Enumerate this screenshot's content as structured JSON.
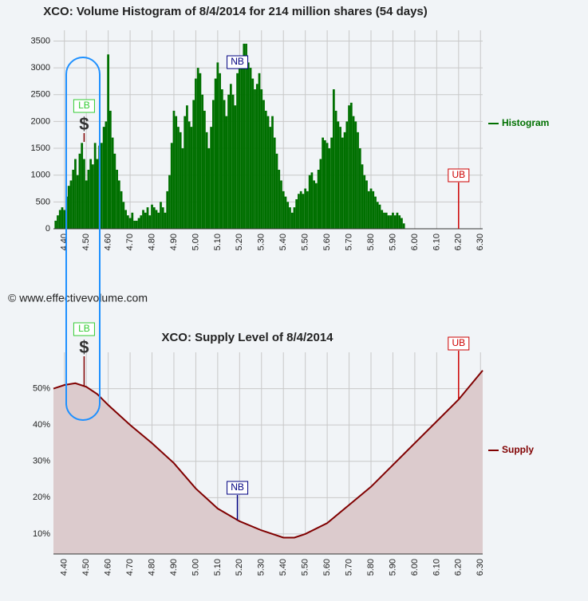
{
  "copyright": "© www.effectivevolume.com",
  "chart_data": [
    {
      "type": "bar",
      "title": "XCO: Volume Histogram of 8/4/2014 for 214 million shares (54 days)",
      "color": "#007000",
      "legend": "Histogram",
      "legend_position": "right",
      "grid": true,
      "x": [
        4.36,
        4.37,
        4.38,
        4.39,
        4.4,
        4.41,
        4.42,
        4.43,
        4.44,
        4.45,
        4.46,
        4.47,
        4.48,
        4.49,
        4.5,
        4.51,
        4.52,
        4.53,
        4.54,
        4.55,
        4.56,
        4.57,
        4.58,
        4.59,
        4.6,
        4.61,
        4.62,
        4.63,
        4.64,
        4.65,
        4.66,
        4.67,
        4.68,
        4.69,
        4.7,
        4.71,
        4.72,
        4.73,
        4.74,
        4.75,
        4.76,
        4.77,
        4.78,
        4.79,
        4.8,
        4.81,
        4.82,
        4.83,
        4.84,
        4.85,
        4.86,
        4.87,
        4.88,
        4.89,
        4.9,
        4.91,
        4.92,
        4.93,
        4.94,
        4.95,
        4.96,
        4.97,
        4.98,
        4.99,
        5.0,
        5.01,
        5.02,
        5.03,
        5.04,
        5.05,
        5.06,
        5.07,
        5.08,
        5.09,
        5.1,
        5.11,
        5.12,
        5.13,
        5.14,
        5.15,
        5.16,
        5.17,
        5.18,
        5.19,
        5.2,
        5.21,
        5.22,
        5.23,
        5.24,
        5.25,
        5.26,
        5.27,
        5.28,
        5.29,
        5.3,
        5.31,
        5.32,
        5.33,
        5.34,
        5.35,
        5.36,
        5.37,
        5.38,
        5.39,
        5.4,
        5.41,
        5.42,
        5.43,
        5.44,
        5.45,
        5.46,
        5.47,
        5.48,
        5.49,
        5.5,
        5.51,
        5.52,
        5.53,
        5.54,
        5.55,
        5.56,
        5.57,
        5.58,
        5.59,
        5.6,
        5.61,
        5.62,
        5.63,
        5.64,
        5.65,
        5.66,
        5.67,
        5.68,
        5.69,
        5.7,
        5.71,
        5.72,
        5.73,
        5.74,
        5.75,
        5.76,
        5.77,
        5.78,
        5.79,
        5.8,
        5.81,
        5.82,
        5.83,
        5.84,
        5.85,
        5.86,
        5.87,
        5.88,
        5.89,
        5.9,
        5.91,
        5.92,
        5.93,
        5.94,
        5.95
      ],
      "values": [
        150,
        250,
        350,
        400,
        350,
        600,
        800,
        900,
        1100,
        1300,
        1000,
        1400,
        1600,
        1300,
        900,
        1100,
        1300,
        1200,
        1600,
        1300,
        1550,
        1600,
        1900,
        2000,
        3250,
        2200,
        1700,
        1400,
        1100,
        900,
        700,
        500,
        350,
        250,
        200,
        300,
        150,
        150,
        200,
        250,
        350,
        300,
        400,
        250,
        450,
        400,
        350,
        300,
        500,
        400,
        300,
        700,
        1000,
        1600,
        2200,
        2100,
        1900,
        1800,
        1500,
        2100,
        2300,
        2000,
        1900,
        2400,
        2800,
        3000,
        2900,
        2500,
        2200,
        1800,
        1500,
        1900,
        2400,
        2800,
        3100,
        2900,
        2600,
        2400,
        2100,
        2500,
        2700,
        2500,
        2300,
        2900,
        3200,
        3000,
        3450,
        3450,
        3100,
        3000,
        2800,
        2600,
        2700,
        2900,
        2600,
        2400,
        2200,
        2100,
        1900,
        2100,
        1700,
        1400,
        1100,
        900,
        700,
        600,
        500,
        400,
        300,
        400,
        550,
        650,
        700,
        650,
        750,
        700,
        1000,
        1050,
        900,
        850,
        1100,
        1300,
        1700,
        1650,
        1600,
        1500,
        1700,
        2600,
        2200,
        2000,
        1900,
        1700,
        1800,
        2000,
        2300,
        2350,
        2100,
        2000,
        1800,
        1500,
        1200,
        1000,
        900,
        700,
        750,
        700,
        600,
        500,
        450,
        350,
        300,
        300,
        250,
        250,
        300,
        250,
        300,
        250,
        200,
        100
      ],
      "xlim": [
        4.35,
        6.31
      ],
      "xticks": [
        {
          "value": 4.4,
          "label": "4.40"
        },
        {
          "value": 4.5,
          "label": "4.50"
        },
        {
          "value": 4.6,
          "label": "4.60"
        },
        {
          "value": 4.7,
          "label": "4.70"
        },
        {
          "value": 4.8,
          "label": "4.80"
        },
        {
          "value": 4.9,
          "label": "4.90"
        },
        {
          "value": 5,
          "label": "5.00"
        },
        {
          "value": 5.1,
          "label": "5.10"
        },
        {
          "value": 5.2,
          "label": "5.20"
        },
        {
          "value": 5.3,
          "label": "5.30"
        },
        {
          "value": 5.4,
          "label": "5.40"
        },
        {
          "value": 5.5,
          "label": "5.50"
        },
        {
          "value": 5.6,
          "label": "5.60"
        },
        {
          "value": 5.7,
          "label": "5.70"
        },
        {
          "value": 5.8,
          "label": "5.80"
        },
        {
          "value": 5.9,
          "label": "5.90"
        },
        {
          "value": 6,
          "label": "6.00"
        },
        {
          "value": 6.1,
          "label": "6.10"
        },
        {
          "value": 6.2,
          "label": "6.20"
        },
        {
          "value": 6.3,
          "label": "6.30"
        }
      ],
      "ylim": [
        0,
        3700
      ],
      "yticks": [
        0,
        500,
        1000,
        1500,
        2000,
        2500,
        3000,
        3500
      ],
      "annotations": [
        {
          "label": "LB",
          "x": 4.49,
          "symbol": "$",
          "color": "#33cc33"
        },
        {
          "label": "NB",
          "x": 5.19,
          "color": "#000080"
        },
        {
          "label": "UB",
          "x": 6.2,
          "color": "#cc0000"
        }
      ]
    },
    {
      "type": "area",
      "title": "XCO: Supply Level of 8/4/2014",
      "color": "#800000",
      "fill": "#dccbcd",
      "legend": "Supply",
      "legend_position": "right",
      "grid": true,
      "x": [
        4.35,
        4.4,
        4.45,
        4.5,
        4.55,
        4.6,
        4.7,
        4.8,
        4.9,
        5.0,
        5.1,
        5.2,
        5.3,
        5.4,
        5.45,
        5.5,
        5.6,
        5.7,
        5.8,
        5.9,
        6.0,
        6.1,
        6.2,
        6.31
      ],
      "values": [
        50,
        51,
        51.5,
        50.5,
        48.5,
        45.5,
        40,
        35,
        29.5,
        22.5,
        17,
        13.5,
        11,
        9,
        9,
        10,
        13,
        18,
        23,
        29,
        35,
        41,
        47,
        55
      ],
      "xlim": [
        4.35,
        6.31
      ],
      "xticks": [
        {
          "value": 4.4,
          "label": "4.40"
        },
        {
          "value": 4.5,
          "label": "4.50"
        },
        {
          "value": 4.6,
          "label": "4.60"
        },
        {
          "value": 4.7,
          "label": "4.70"
        },
        {
          "value": 4.8,
          "label": "4.80"
        },
        {
          "value": 4.9,
          "label": "4.90"
        },
        {
          "value": 5,
          "label": "5.00"
        },
        {
          "value": 5.1,
          "label": "5.10"
        },
        {
          "value": 5.2,
          "label": "5.20"
        },
        {
          "value": 5.3,
          "label": "5.30"
        },
        {
          "value": 5.4,
          "label": "5.40"
        },
        {
          "value": 5.5,
          "label": "5.50"
        },
        {
          "value": 5.6,
          "label": "5.60"
        },
        {
          "value": 5.7,
          "label": "5.70"
        },
        {
          "value": 5.8,
          "label": "5.80"
        },
        {
          "value": 5.9,
          "label": "5.90"
        },
        {
          "value": 6,
          "label": "6.00"
        },
        {
          "value": 6.1,
          "label": "6.10"
        },
        {
          "value": 6.2,
          "label": "6.20"
        },
        {
          "value": 6.3,
          "label": "6.30"
        }
      ],
      "ylim": [
        4.5,
        60
      ],
      "yticks": [
        {
          "value": 10,
          "label": "10%"
        },
        {
          "value": 20,
          "label": "20%"
        },
        {
          "value": 30,
          "label": "30%"
        },
        {
          "value": 40,
          "label": "40%"
        },
        {
          "value": 50,
          "label": "50%"
        }
      ],
      "annotations": [
        {
          "label": "LB",
          "x": 4.49,
          "symbol": "$",
          "color": "#33cc33"
        },
        {
          "label": "NB",
          "x": 5.19,
          "color": "#000080"
        },
        {
          "label": "UB",
          "x": 6.2,
          "color": "#cc0000"
        }
      ]
    }
  ]
}
